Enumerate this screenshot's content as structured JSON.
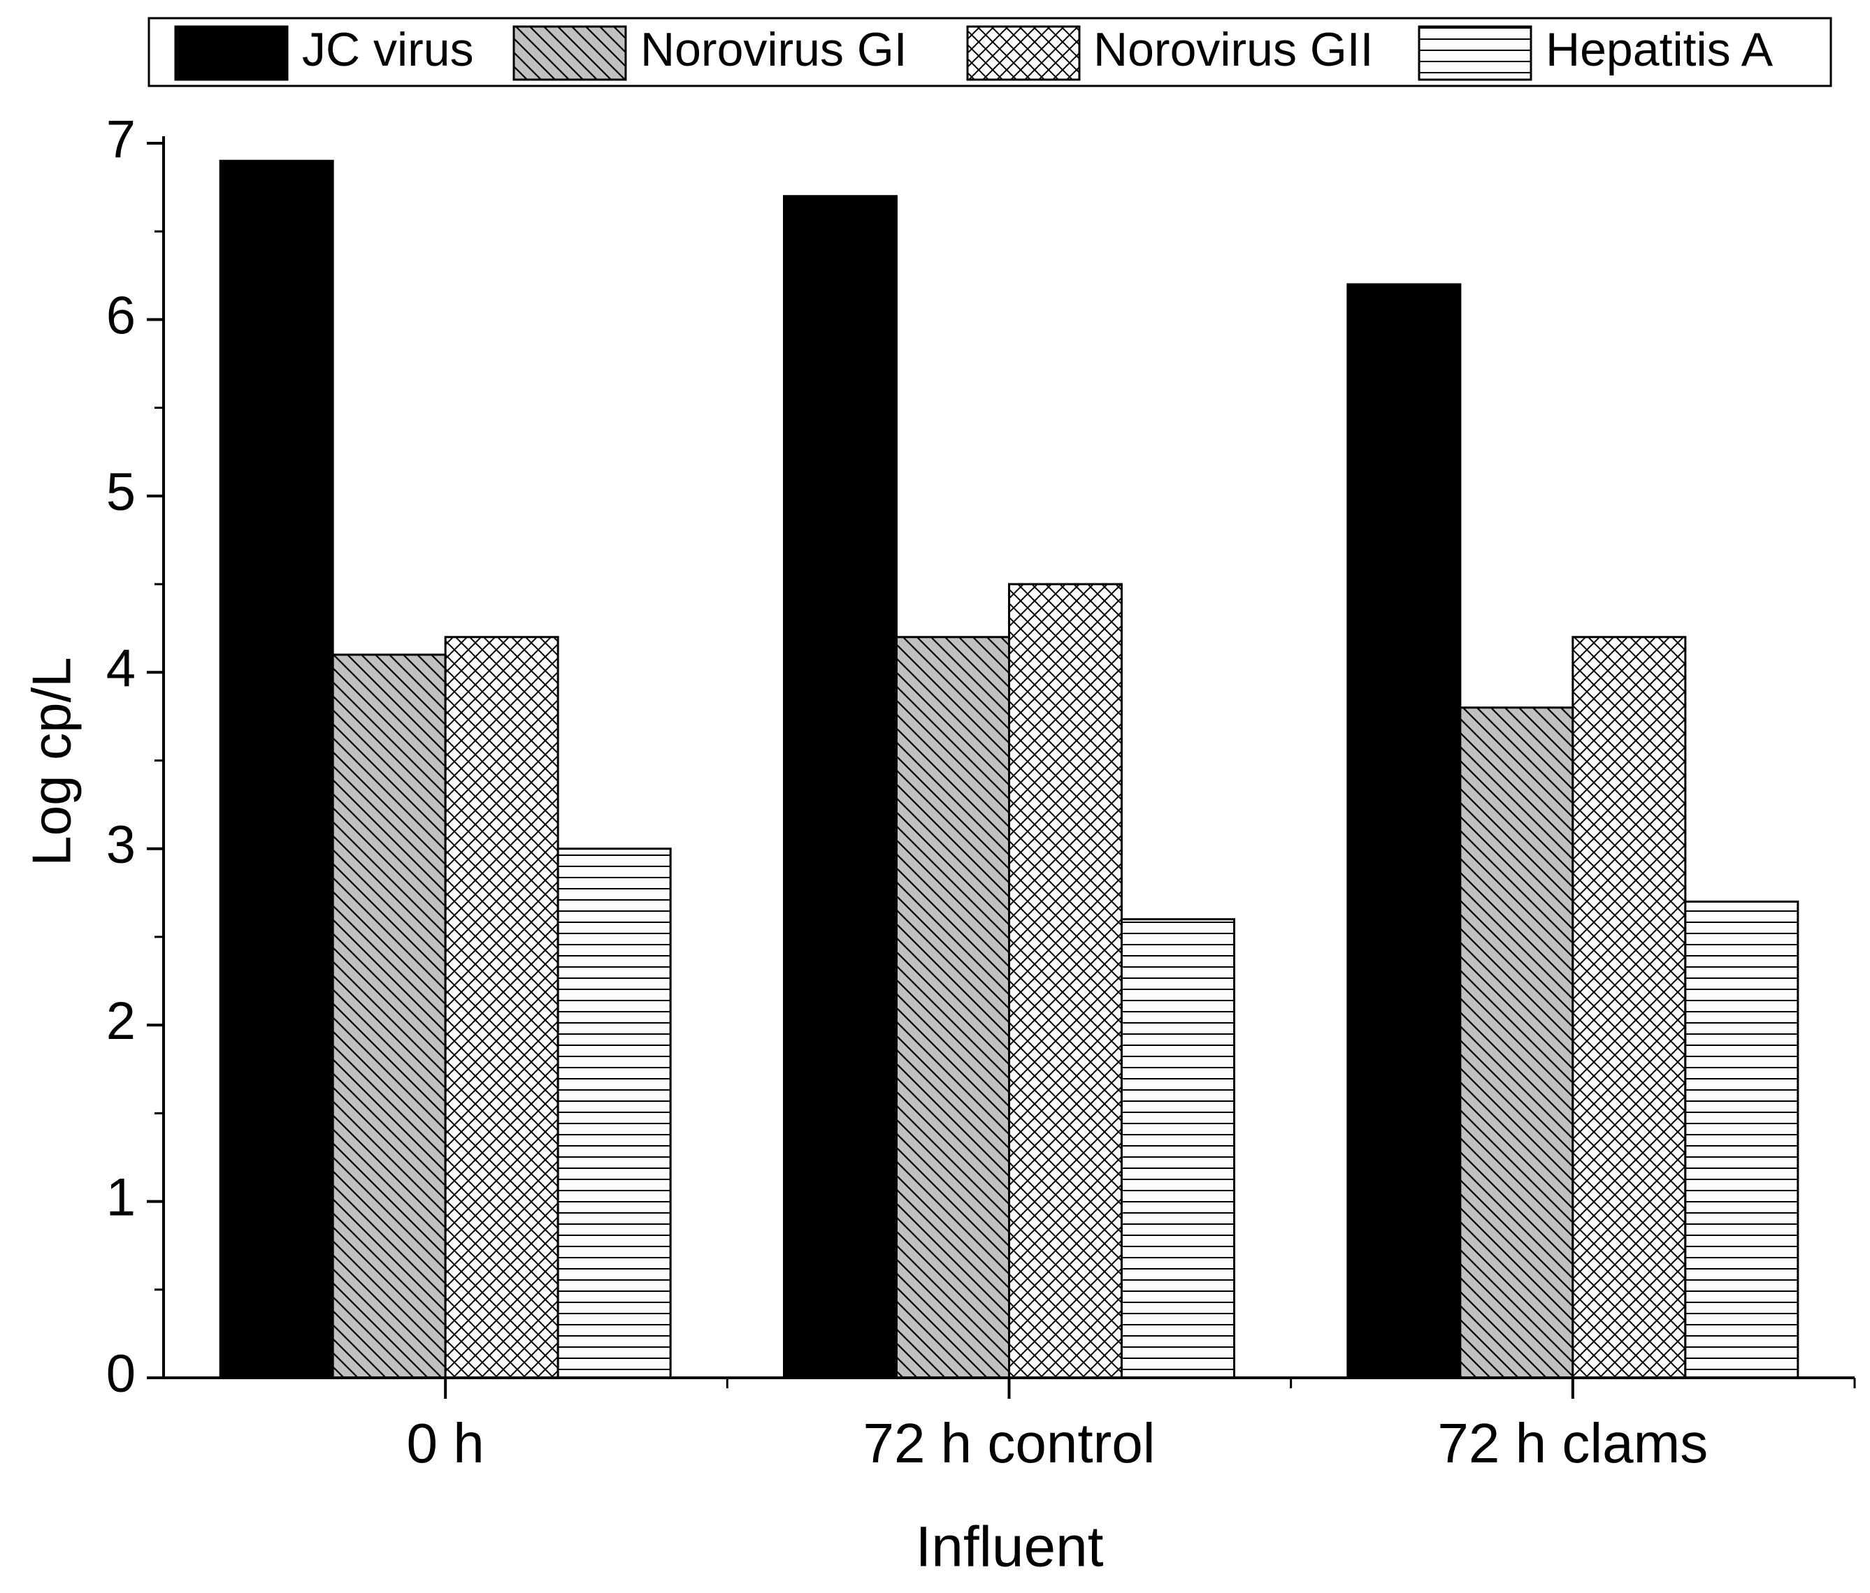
{
  "chart_data": {
    "type": "bar",
    "x_label": "Influent",
    "y_label": "Log cp/L",
    "categories": [
      "0 h",
      "72 h control",
      "72 h clams"
    ],
    "series": [
      {
        "name": "JC virus",
        "color": "#000000",
        "pattern": "solid",
        "values": [
          6.9,
          6.7,
          6.2
        ]
      },
      {
        "name": "Norovirus GI",
        "color": "#c0c0c0",
        "pattern": "diagonal",
        "values": [
          4.1,
          4.2,
          3.8
        ]
      },
      {
        "name": "Norovirus GII",
        "color": "#ffffff",
        "pattern": "crosshatch",
        "values": [
          4.2,
          4.5,
          4.2
        ]
      },
      {
        "name": "Hepatitis A",
        "color": "#ffffff",
        "pattern": "horizontal",
        "values": [
          3.0,
          2.6,
          2.7
        ]
      }
    ],
    "ylim": [
      0,
      7
    ],
    "yticks": [
      0,
      1,
      2,
      3,
      4,
      5,
      6,
      7
    ],
    "grid": false,
    "legend": "top"
  }
}
